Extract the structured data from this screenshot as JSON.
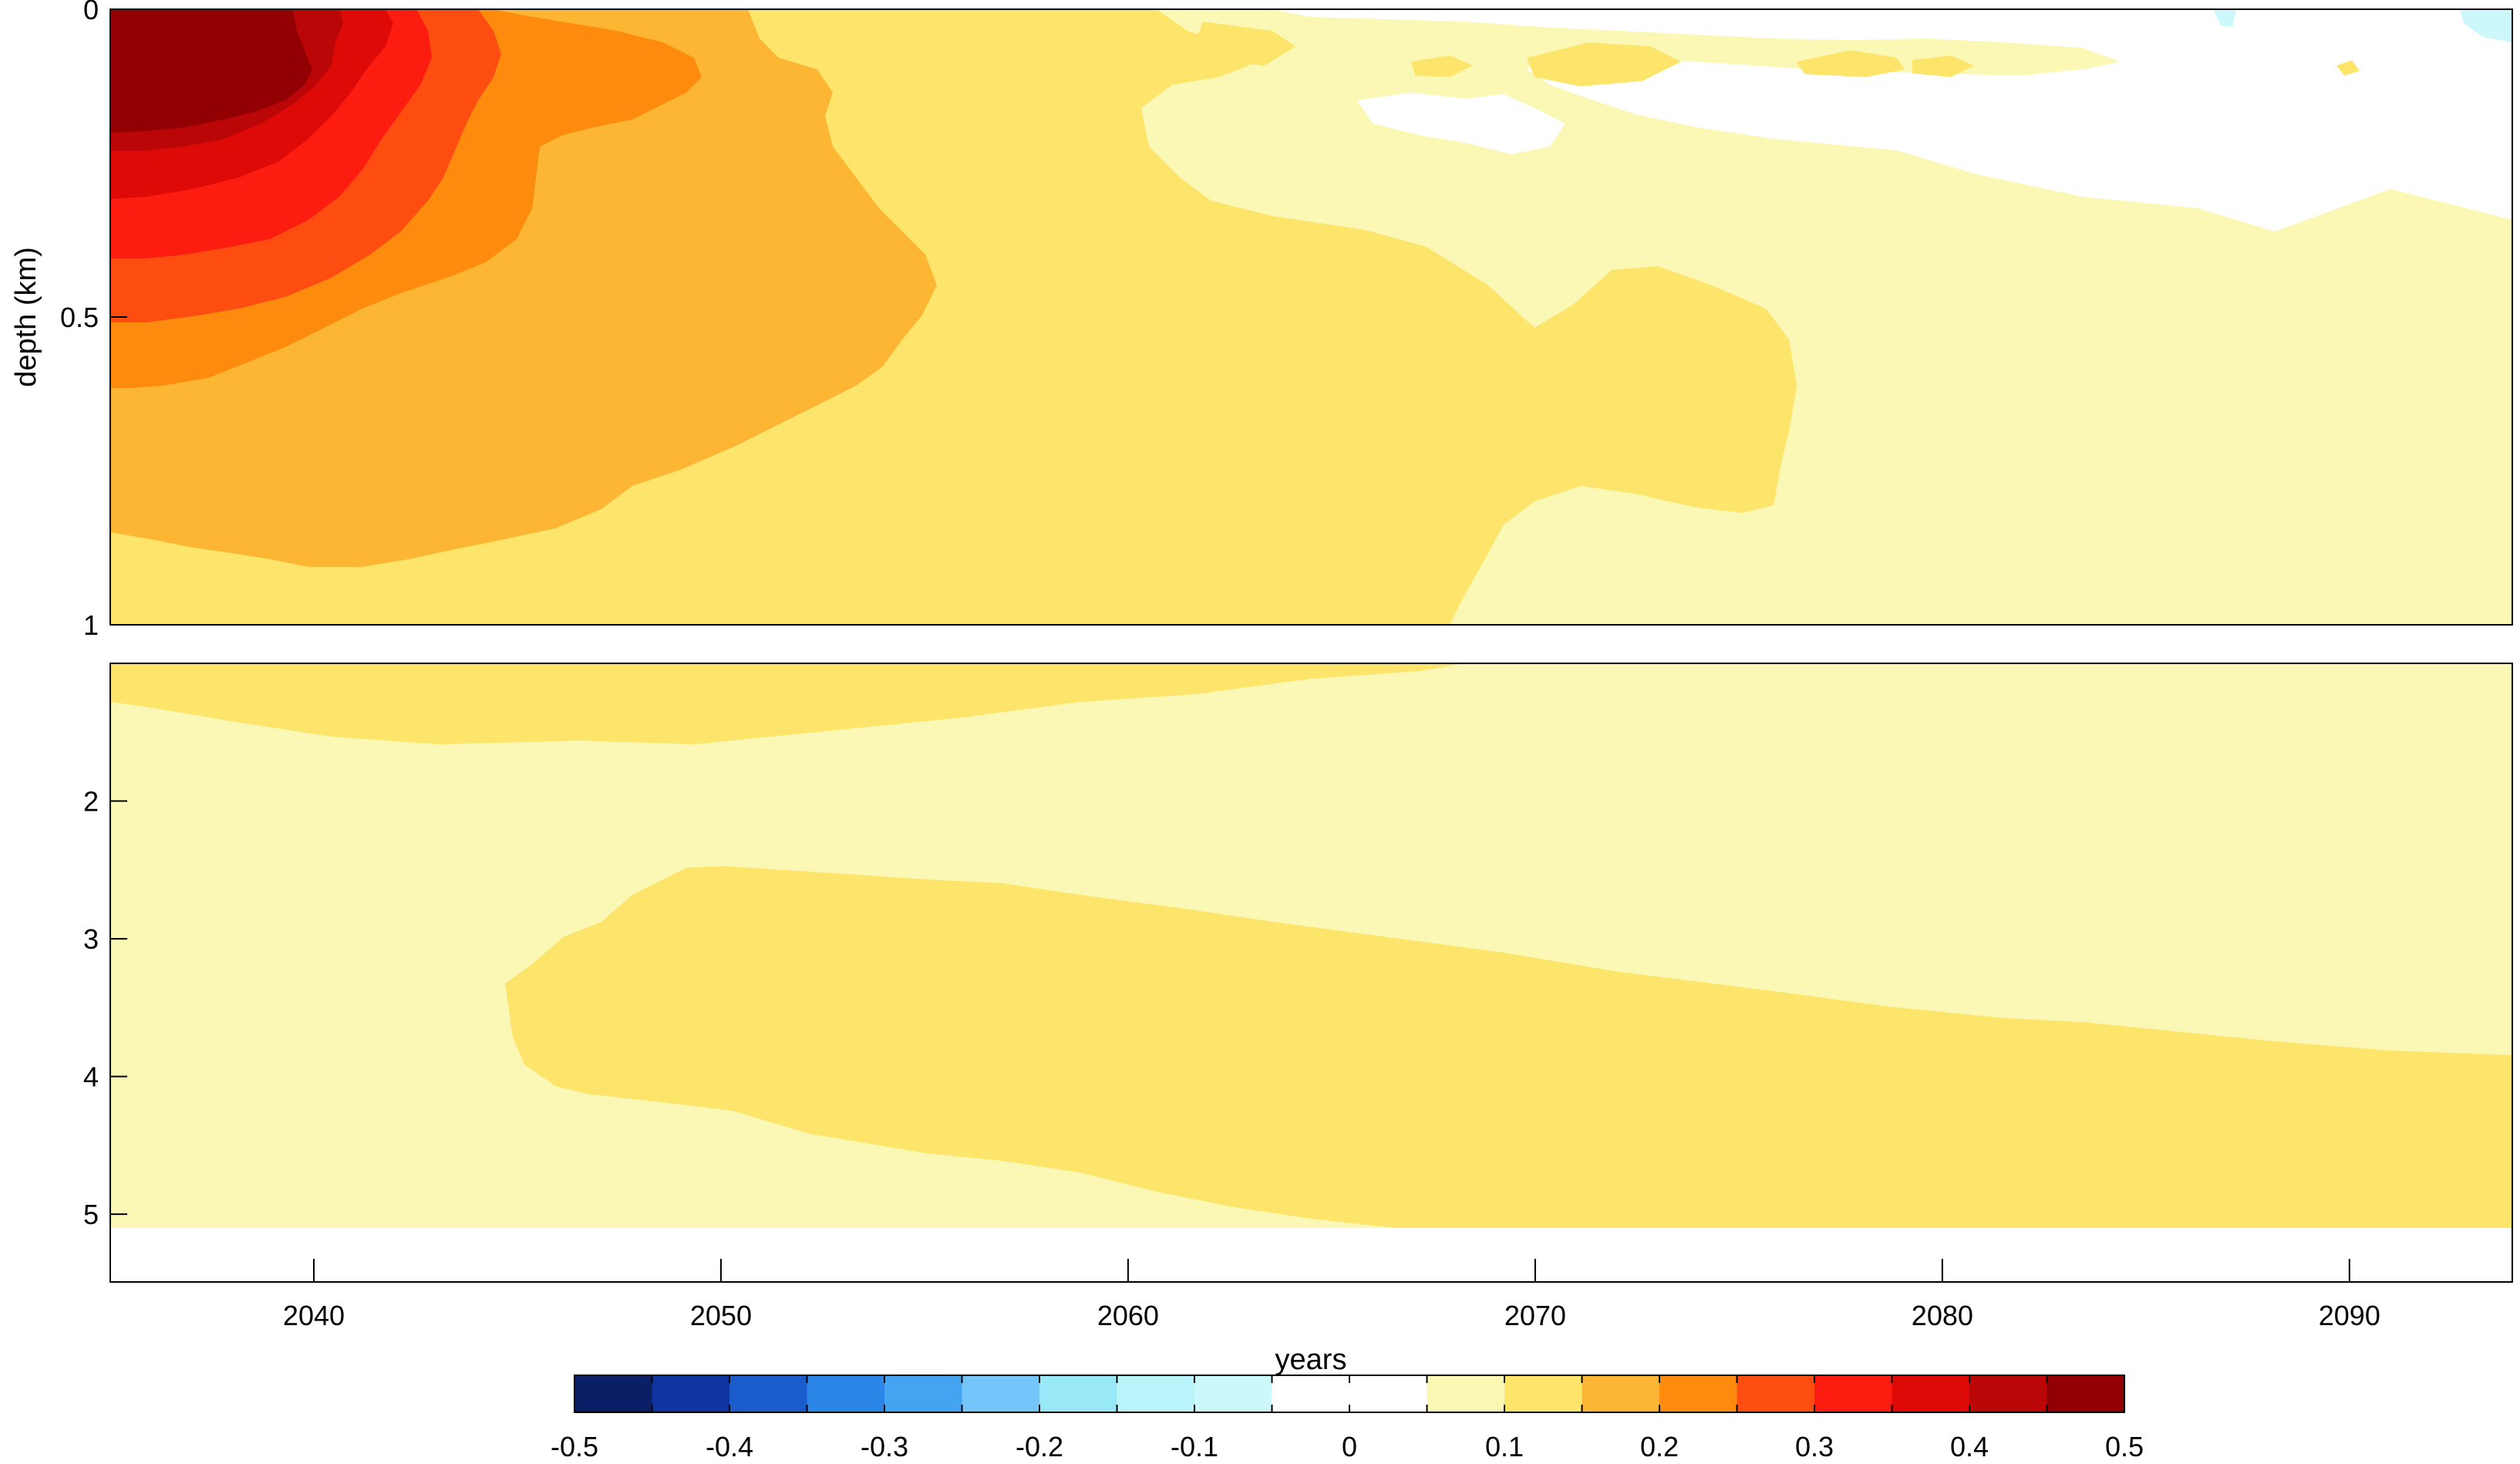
{
  "chart_data": {
    "type": "heatmap",
    "title": "",
    "xlabel": "years",
    "ylabel": "depth (km)",
    "x_ticks": [
      2040,
      2050,
      2060,
      2070,
      2080,
      2090
    ],
    "xlim": [
      2035,
      2094
    ],
    "upper_panel": {
      "ylim": [
        0,
        1
      ],
      "y_ticks": [
        0,
        0.5,
        1
      ],
      "y_tick_labels": [
        "0",
        "0.5",
        "1"
      ]
    },
    "lower_panel": {
      "ylim": [
        1,
        5.1
      ],
      "y_ticks": [
        2,
        3,
        4,
        5
      ],
      "y_tick_labels": [
        "2",
        "3",
        "4",
        "5"
      ]
    },
    "colorbar": {
      "levels": [
        -0.5,
        -0.45,
        -0.4,
        -0.35,
        -0.3,
        -0.25,
        -0.2,
        -0.15,
        -0.1,
        -0.05,
        0,
        0.05,
        0.1,
        0.15,
        0.2,
        0.25,
        0.3,
        0.35,
        0.4,
        0.45,
        0.5
      ],
      "tick_labels": [
        "-0.5",
        "-0.4",
        "-0.3",
        "-0.2",
        "-0.1",
        "0",
        "0.1",
        "0.2",
        "0.3",
        "0.4",
        "0.5"
      ],
      "colors": [
        "#0a1f66",
        "#0f34a0",
        "#1a5ccc",
        "#2c86e8",
        "#44a4f2",
        "#74c6fa",
        "#98e8f8",
        "#b9f4fa",
        "#ccf8fc",
        "#ffffff",
        "#ffffff",
        "#faf8b4",
        "#fde46a",
        "#fdb534",
        "#fd8c0e",
        "#fd4d10",
        "#fc1c10",
        "#dd0a08",
        "#ba0606",
        "#930003"
      ]
    },
    "contour_regions_upper": [
      {
        "level": 0.05,
        "color": "#faf8b4",
        "description": "background anomaly 0.05-0.1 over most of upper panel after ~2058"
      },
      {
        "level": 0.1,
        "color": "#fde46a",
        "description": "0.1-0.15 band from surface to 1 km, 2035-2068, plus lobe to 2076 near 0.5-0.8 km"
      },
      {
        "level": 0.15,
        "color": "#fdb534",
        "description": "0.15-0.2 band extending to ~2055 at 0.4 km"
      },
      {
        "level": 0.2,
        "color": "#fd8c0e",
        "description": "0.2-0.25 band to ~2051 near surface"
      },
      {
        "level": 0.25,
        "color": "#fd4d10",
        "description": "0.25-0.3 to ~2049"
      },
      {
        "level": 0.3,
        "color": "#fc1c10",
        "description": "0.3-0.35 to ~2045"
      },
      {
        "level": 0.35,
        "color": "#dd0a08",
        "description": "0.35-0.4 to ~2042"
      },
      {
        "level": 0.4,
        "color": "#ba0606",
        "description": "0.4-0.45 to ~2041"
      },
      {
        "level": 0.45,
        "color": "#930003",
        "description": "max 0.45-0.5 near surface 2035-2040"
      }
    ],
    "contour_regions_lower": [
      {
        "level": 0.05,
        "color": "#faf8b4",
        "description": "background 0.05-0.1 over deep ocean"
      },
      {
        "level": 0.1,
        "color": "#fde46a",
        "description": "0.1-0.15 near 1-1.6 km 2035-2068 and deep band 2.5-4.3 km from 2045 deepening to 5 km after 2066"
      }
    ]
  }
}
